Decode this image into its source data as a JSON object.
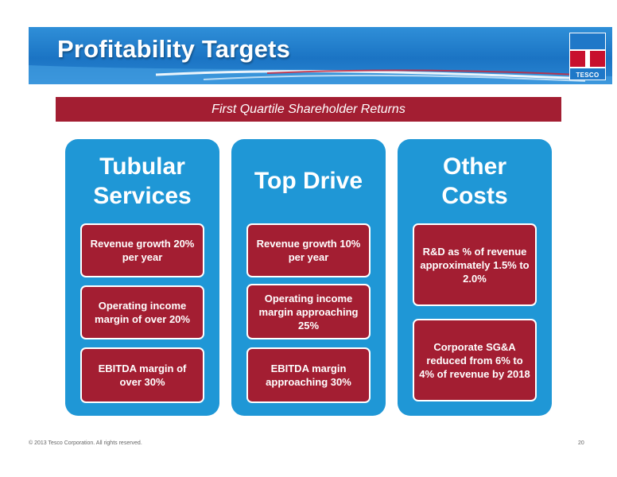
{
  "header": {
    "title": "Profitability Targets",
    "logo_text": "TESCO",
    "colors": {
      "bar": "#1b74c4",
      "accent_red": "#a31e32",
      "panel": "#1f97d6"
    }
  },
  "banner": {
    "text": "First Quartile Shareholder Returns"
  },
  "columns": [
    {
      "title_lines": [
        "Tubular",
        "Services"
      ],
      "items": [
        "Revenue growth 20% per year",
        "Operating income margin of over 20%",
        "EBITDA margin of over 30%"
      ]
    },
    {
      "title_lines": [
        "Top Drive"
      ],
      "items": [
        "Revenue growth 10% per year",
        "Operating income margin approaching 25%",
        "EBITDA margin approaching 30%"
      ]
    },
    {
      "title_lines": [
        "Other",
        "Costs"
      ],
      "items": [
        "R&D as % of revenue approximately 1.5% to 2.0%",
        "Corporate SG&A reduced from 6% to 4% of revenue by 2018"
      ]
    }
  ],
  "footer": {
    "copyright": "© 2013 Tesco Corporation. All rights reserved.",
    "page_number": "20"
  }
}
